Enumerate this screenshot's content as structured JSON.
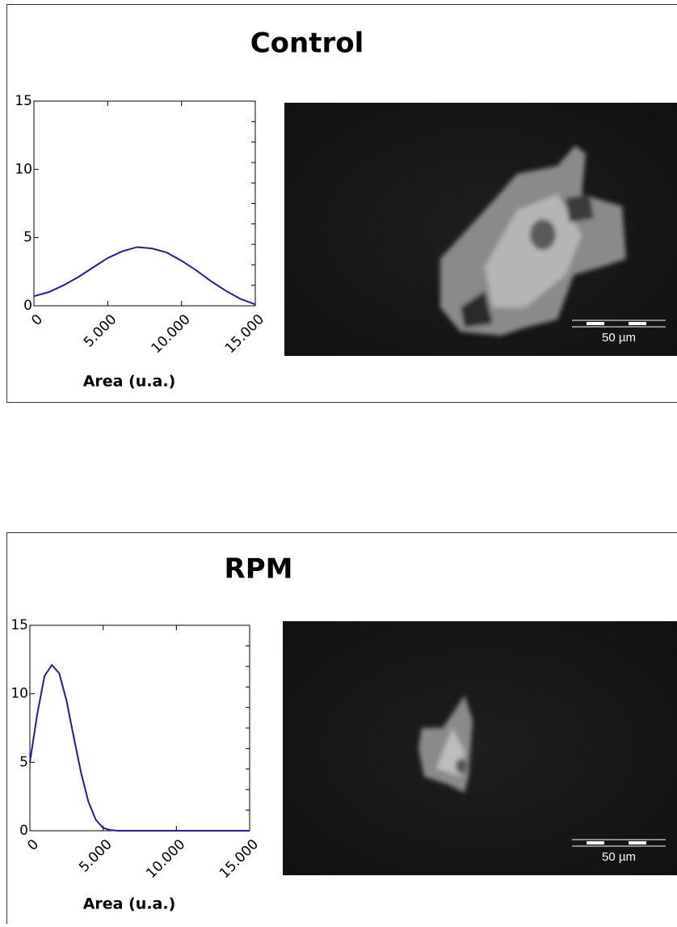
{
  "chart_data": [
    {
      "type": "line",
      "title": "Control",
      "xlabel": "Area (u.a.)",
      "image_annotation": "50 µm",
      "x": [
        0,
        1000,
        2000,
        3000,
        4000,
        5000,
        6000,
        7000,
        8000,
        9000,
        10000,
        11000,
        12000,
        13000,
        14000,
        15000
      ],
      "series": [
        {
          "color": "#1f1f8f",
          "values": [
            0.7,
            1.0,
            1.5,
            2.1,
            2.8,
            3.5,
            4.0,
            4.3,
            4.2,
            3.9,
            3.3,
            2.6,
            1.8,
            1.1,
            0.5,
            0.1
          ]
        }
      ],
      "xlim": [
        0,
        15000
      ],
      "ylim": [
        0,
        15
      ],
      "xticks": [
        0,
        {
          "value": 5000,
          "label": "5.000"
        },
        {
          "value": 10000,
          "label": "10.000"
        },
        {
          "value": 15000,
          "label": "15.000"
        }
      ],
      "yticks": [
        0,
        5,
        10,
        15
      ]
    },
    {
      "type": "line",
      "title": "RPM",
      "xlabel": "Area (u.a.)",
      "image_annotation": "50 µm",
      "x": [
        0,
        500,
        1000,
        1500,
        2000,
        2500,
        3000,
        3500,
        4000,
        4500,
        5000,
        5500,
        6000,
        8000,
        10000,
        12000,
        15000
      ],
      "series": [
        {
          "color": "#1f1f8f",
          "values": [
            5.0,
            8.5,
            11.3,
            12.1,
            11.5,
            9.5,
            6.8,
            4.2,
            2.1,
            0.8,
            0.2,
            0.05,
            0,
            0,
            0,
            0,
            0
          ]
        }
      ],
      "xlim": [
        0,
        15000
      ],
      "ylim": [
        0,
        15
      ],
      "xticks": [
        0,
        {
          "value": 5000,
          "label": "5.000"
        },
        {
          "value": 10000,
          "label": "10.000"
        },
        {
          "value": 15000,
          "label": "15.000"
        }
      ],
      "yticks": [
        0,
        5,
        10,
        15
      ]
    }
  ]
}
